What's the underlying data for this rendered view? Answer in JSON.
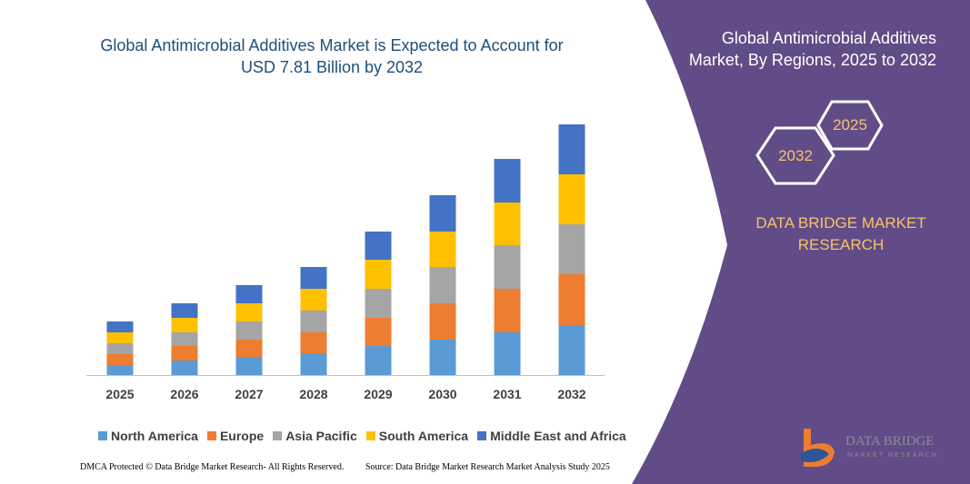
{
  "chart_data": {
    "type": "stacked-bar",
    "title": "Global Antimicrobial Additives Market is Expected to Account for USD 7.81 Billion by 2032",
    "categories": [
      "2025",
      "2026",
      "2027",
      "2028",
      "2029",
      "2030",
      "2031",
      "2032"
    ],
    "series": [
      {
        "name": "North America",
        "color": "#5b9bd5",
        "values": [
          11,
          16,
          20,
          24,
          32,
          39,
          47,
          55
        ]
      },
      {
        "name": "Europe",
        "color": "#ed7d31",
        "values": [
          12,
          16,
          19,
          23,
          31,
          40,
          48,
          56
        ]
      },
      {
        "name": "Asia Pacific",
        "color": "#a5a5a5",
        "values": [
          12,
          15,
          20,
          24,
          32,
          40,
          48,
          55
        ]
      },
      {
        "name": "South America",
        "color": "#ffc000",
        "values": [
          12,
          16,
          20,
          24,
          32,
          39,
          47,
          55
        ]
      },
      {
        "name": "Middle East and Africa",
        "color": "#4472c4",
        "values": [
          12,
          16,
          20,
          24,
          31,
          40,
          48,
          55
        ]
      }
    ],
    "ylim": [
      0,
      276
    ]
  },
  "side_panel": {
    "title": "Global Antimicrobial Additives Market, By Regions, 2025 to 2032",
    "badges": [
      "2025",
      "2032"
    ],
    "brand": "DATA BRIDGE MARKET RESEARCH"
  },
  "logo": {
    "name": "DATA BRIDGE",
    "tagline": "MARKET RESEARCH"
  },
  "footer": {
    "left": "DMCA Protected © Data Bridge Market Research- All Rights Reserved.",
    "right": "Source: Data Bridge Market Research Market Analysis Study 2025"
  }
}
